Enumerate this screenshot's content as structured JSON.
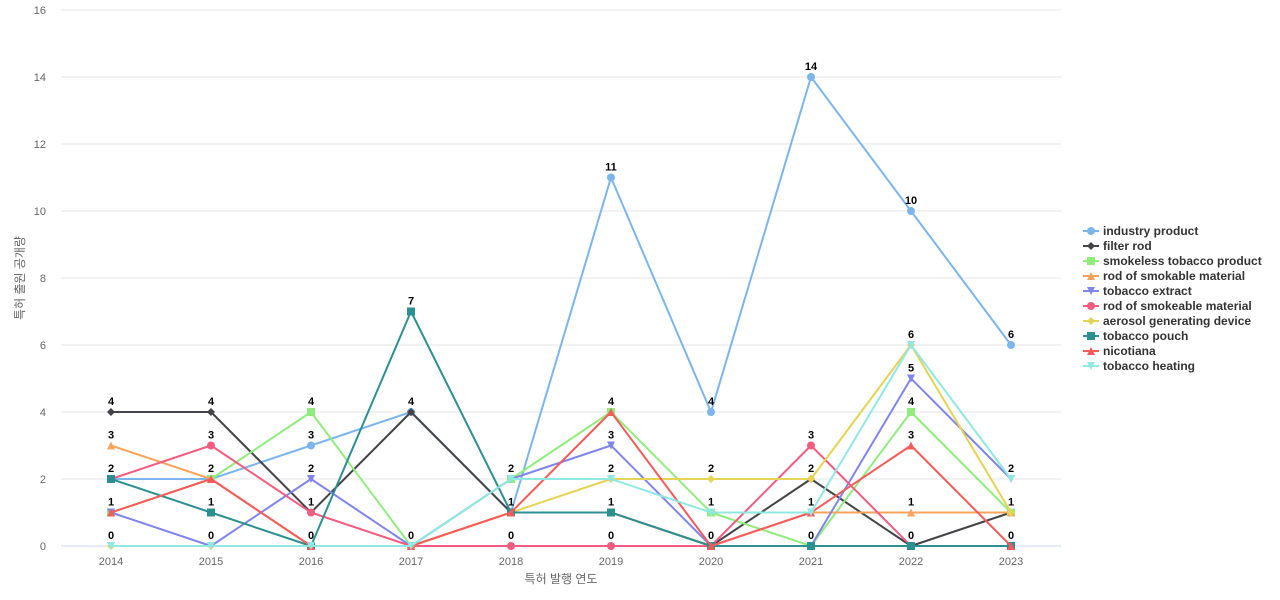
{
  "chart_data": {
    "type": "line",
    "title": "",
    "xlabel": "특허 발행 연도",
    "ylabel": "특허 출원 공개량",
    "x": [
      "2014",
      "2015",
      "2016",
      "2017",
      "2018",
      "2019",
      "2020",
      "2021",
      "2022",
      "2023"
    ],
    "ylim": [
      0,
      16
    ],
    "yticks": [
      0,
      2,
      4,
      6,
      8,
      10,
      12,
      14,
      16
    ],
    "grid": true,
    "legend_position": "right",
    "series": [
      {
        "name": "industry product",
        "color": "#7cb5ec",
        "marker": "circle",
        "values": [
          2,
          2,
          3,
          4,
          1,
          11,
          4,
          14,
          10,
          6
        ]
      },
      {
        "name": "filter rod",
        "color": "#434348",
        "marker": "diamond",
        "values": [
          4,
          4,
          1,
          4,
          1,
          1,
          0,
          2,
          0,
          1
        ]
      },
      {
        "name": "smokeless tobacco product",
        "color": "#90ed7d",
        "marker": "square",
        "values": [
          1,
          2,
          4,
          0,
          2,
          4,
          1,
          0,
          4,
          1
        ]
      },
      {
        "name": "rod of smokable material",
        "color": "#f7a35c",
        "marker": "triangle",
        "values": [
          3,
          2,
          0,
          0,
          1,
          1,
          0,
          1,
          1,
          1
        ]
      },
      {
        "name": "tobacco extract",
        "color": "#8085e9",
        "marker": "triangle-down",
        "values": [
          1,
          0,
          2,
          0,
          2,
          3,
          0,
          0,
          5,
          2
        ]
      },
      {
        "name": "rod of smokeable material",
        "color": "#f15c80",
        "marker": "circle",
        "values": [
          2,
          3,
          1,
          0,
          0,
          0,
          0,
          3,
          0,
          0
        ]
      },
      {
        "name": "aerosol generating device",
        "color": "#e4d354",
        "marker": "diamond",
        "values": [
          0,
          0,
          0,
          0,
          1,
          2,
          2,
          2,
          6,
          1
        ]
      },
      {
        "name": "tobacco pouch",
        "color": "#2b908f",
        "marker": "square",
        "values": [
          2,
          1,
          0,
          7,
          1,
          1,
          0,
          0,
          0,
          0
        ]
      },
      {
        "name": "nicotiana",
        "color": "#f45b5b",
        "marker": "triangle",
        "values": [
          1,
          2,
          0,
          0,
          1,
          4,
          0,
          1,
          3,
          0
        ]
      },
      {
        "name": "tobacco heating",
        "color": "#91e8e1",
        "marker": "triangle-down",
        "values": [
          0,
          0,
          0,
          0,
          2,
          2,
          1,
          1,
          6,
          2
        ]
      }
    ],
    "data_labels": {
      "2014": [
        "4",
        "3",
        "2",
        "1",
        "0"
      ],
      "2015": [
        "4",
        "3",
        "2",
        "1",
        "0"
      ],
      "2016": [
        "4",
        "3",
        "2",
        "1",
        "0"
      ],
      "2017": [
        "7",
        "4",
        "0"
      ],
      "2018": [
        "2",
        "1",
        "0"
      ],
      "2019": [
        "11",
        "4",
        "3",
        "2",
        "1",
        "0"
      ],
      "2020": [
        "4",
        "2",
        "1",
        "0"
      ],
      "2021": [
        "14",
        "3",
        "2",
        "1",
        "0"
      ],
      "2022": [
        "10",
        "6",
        "5",
        "4",
        "3",
        "1",
        "0"
      ],
      "2023": [
        "6",
        "2",
        "1",
        "0"
      ]
    }
  }
}
